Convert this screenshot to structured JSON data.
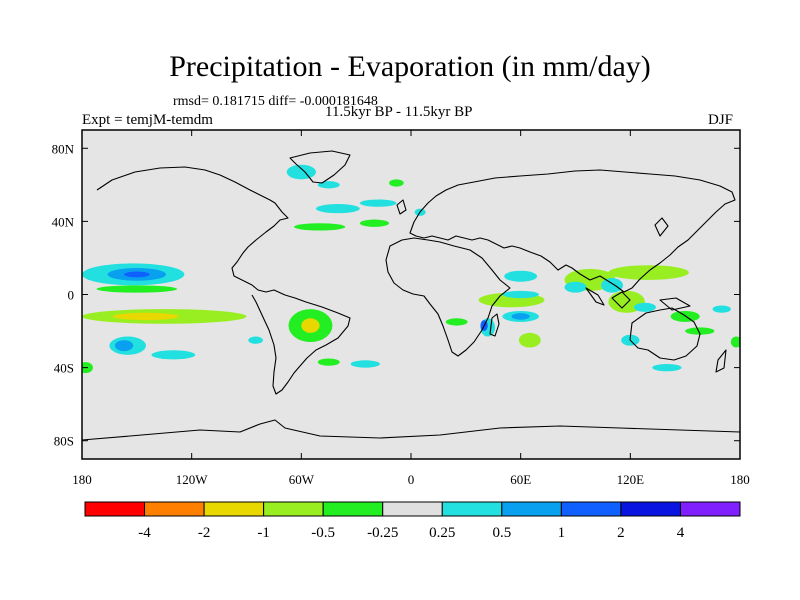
{
  "title": "Precipitation - Evaporation (in mm/day)",
  "stats_line": "rmsd= 0.181715 diff= -0.000181648",
  "experiment": "Expt = temjM-temdm",
  "period": "11.5kyr BP - 11.5kyr BP",
  "season": "DJF",
  "chart_data": {
    "type": "contour-map",
    "title": "Precipitation - Evaporation (in mm/day)",
    "units": "mm/day",
    "rmsd": 0.181715,
    "diff": -0.000181648,
    "xlim": [
      -180,
      180
    ],
    "ylim": [
      -90,
      90
    ],
    "x_ticks": [
      {
        "value": -180,
        "label": "180"
      },
      {
        "value": -120,
        "label": "120W"
      },
      {
        "value": -60,
        "label": "60W"
      },
      {
        "value": 0,
        "label": "0"
      },
      {
        "value": 60,
        "label": "60E"
      },
      {
        "value": 120,
        "label": "120E"
      },
      {
        "value": 180,
        "label": "180"
      }
    ],
    "y_ticks": [
      {
        "value": 80,
        "label": "80N"
      },
      {
        "value": 40,
        "label": "40N"
      },
      {
        "value": 0,
        "label": "0"
      },
      {
        "value": -40,
        "label": "40S"
      },
      {
        "value": -80,
        "label": "80S"
      }
    ],
    "colorbar": {
      "colors": [
        "#ff0000",
        "#ff8000",
        "#e8d800",
        "#99ee22",
        "#22ee22",
        "#e0e0e0",
        "#22e0e0",
        "#0aa0f0",
        "#1060ff",
        "#0a14e0",
        "#8020ff"
      ],
      "labels": [
        "-4",
        "-2",
        "-1",
        "-0.5",
        "-0.25",
        "0.25",
        "0.5",
        "1",
        "2",
        "4"
      ]
    },
    "anomalies": [
      {
        "lon": -152,
        "lat": 11,
        "rx": 28,
        "ry": 6,
        "level": 1
      },
      {
        "lon": -150,
        "lat": 11,
        "rx": 16,
        "ry": 3.5,
        "level": 2
      },
      {
        "lon": -150,
        "lat": 11,
        "rx": 7,
        "ry": 1.6,
        "level": 3
      },
      {
        "lon": -150,
        "lat": 3,
        "rx": 22,
        "ry": 2,
        "level": -1
      },
      {
        "lon": -135,
        "lat": -12,
        "rx": 45,
        "ry": 4,
        "level": -2
      },
      {
        "lon": -145,
        "lat": -12,
        "rx": 18,
        "ry": 2,
        "level": -3
      },
      {
        "lon": -155,
        "lat": -28,
        "rx": 10,
        "ry": 5,
        "level": 1
      },
      {
        "lon": -157,
        "lat": -28,
        "rx": 5,
        "ry": 3,
        "level": 2
      },
      {
        "lon": -130,
        "lat": -33,
        "rx": 12,
        "ry": 2.5,
        "level": 1
      },
      {
        "lon": -178,
        "lat": -40,
        "rx": 4,
        "ry": 3,
        "level": -1
      },
      {
        "lon": -85,
        "lat": -25,
        "rx": 4,
        "ry": 2,
        "level": 1
      },
      {
        "lon": -55,
        "lat": -17,
        "rx": 12,
        "ry": 9,
        "level": -1
      },
      {
        "lon": -55,
        "lat": -17,
        "rx": 5,
        "ry": 4,
        "level": -3
      },
      {
        "lon": -45,
        "lat": -37,
        "rx": 6,
        "ry": 2,
        "level": -1
      },
      {
        "lon": -25,
        "lat": -38,
        "rx": 8,
        "ry": 2,
        "level": 1
      },
      {
        "lon": -60,
        "lat": 67,
        "rx": 8,
        "ry": 4,
        "level": 1
      },
      {
        "lon": -45,
        "lat": 60,
        "rx": 6,
        "ry": 2,
        "level": 1
      },
      {
        "lon": -40,
        "lat": 47,
        "rx": 12,
        "ry": 2.5,
        "level": 1
      },
      {
        "lon": -18,
        "lat": 50,
        "rx": 10,
        "ry": 2,
        "level": 1
      },
      {
        "lon": -50,
        "lat": 37,
        "rx": 14,
        "ry": 2,
        "level": -1
      },
      {
        "lon": -20,
        "lat": 39,
        "rx": 8,
        "ry": 2,
        "level": -1
      },
      {
        "lon": -8,
        "lat": 61,
        "rx": 4,
        "ry": 2,
        "level": -1
      },
      {
        "lon": 5,
        "lat": 45,
        "rx": 3,
        "ry": 2,
        "level": 1
      },
      {
        "lon": 25,
        "lat": -15,
        "rx": 6,
        "ry": 2,
        "level": -1
      },
      {
        "lon": 42,
        "lat": -18,
        "rx": 4,
        "ry": 5,
        "level": 1
      },
      {
        "lon": 40,
        "lat": -17,
        "rx": 2,
        "ry": 3,
        "level": 3
      },
      {
        "lon": 60,
        "lat": 10,
        "rx": 9,
        "ry": 3,
        "level": 1
      },
      {
        "lon": 55,
        "lat": -3,
        "rx": 18,
        "ry": 4,
        "level": -2
      },
      {
        "lon": 60,
        "lat": 0,
        "rx": 10,
        "ry": 2,
        "level": 1
      },
      {
        "lon": 60,
        "lat": -12,
        "rx": 10,
        "ry": 3,
        "level": 1
      },
      {
        "lon": 60,
        "lat": -12,
        "rx": 5,
        "ry": 1.8,
        "level": 2
      },
      {
        "lon": 65,
        "lat": -25,
        "rx": 6,
        "ry": 4,
        "level": -2
      },
      {
        "lon": 98,
        "lat": 8,
        "rx": 14,
        "ry": 6,
        "level": -2
      },
      {
        "lon": 130,
        "lat": 12,
        "rx": 22,
        "ry": 4,
        "level": -2
      },
      {
        "lon": 90,
        "lat": 4,
        "rx": 6,
        "ry": 3,
        "level": 1
      },
      {
        "lon": 110,
        "lat": 5,
        "rx": 6,
        "ry": 4,
        "level": 1
      },
      {
        "lon": 118,
        "lat": -4,
        "rx": 10,
        "ry": 6,
        "level": -2
      },
      {
        "lon": 128,
        "lat": -7,
        "rx": 6,
        "ry": 2.5,
        "level": 1
      },
      {
        "lon": 150,
        "lat": -12,
        "rx": 8,
        "ry": 3,
        "level": -1
      },
      {
        "lon": 170,
        "lat": -8,
        "rx": 5,
        "ry": 2,
        "level": 1
      },
      {
        "lon": 158,
        "lat": -20,
        "rx": 8,
        "ry": 2,
        "level": -1
      },
      {
        "lon": 120,
        "lat": -25,
        "rx": 5,
        "ry": 3,
        "level": 1
      },
      {
        "lon": 140,
        "lat": -40,
        "rx": 8,
        "ry": 2,
        "level": 1
      },
      {
        "lon": 178,
        "lat": -26,
        "rx": 3,
        "ry": 3,
        "level": -1
      }
    ]
  }
}
